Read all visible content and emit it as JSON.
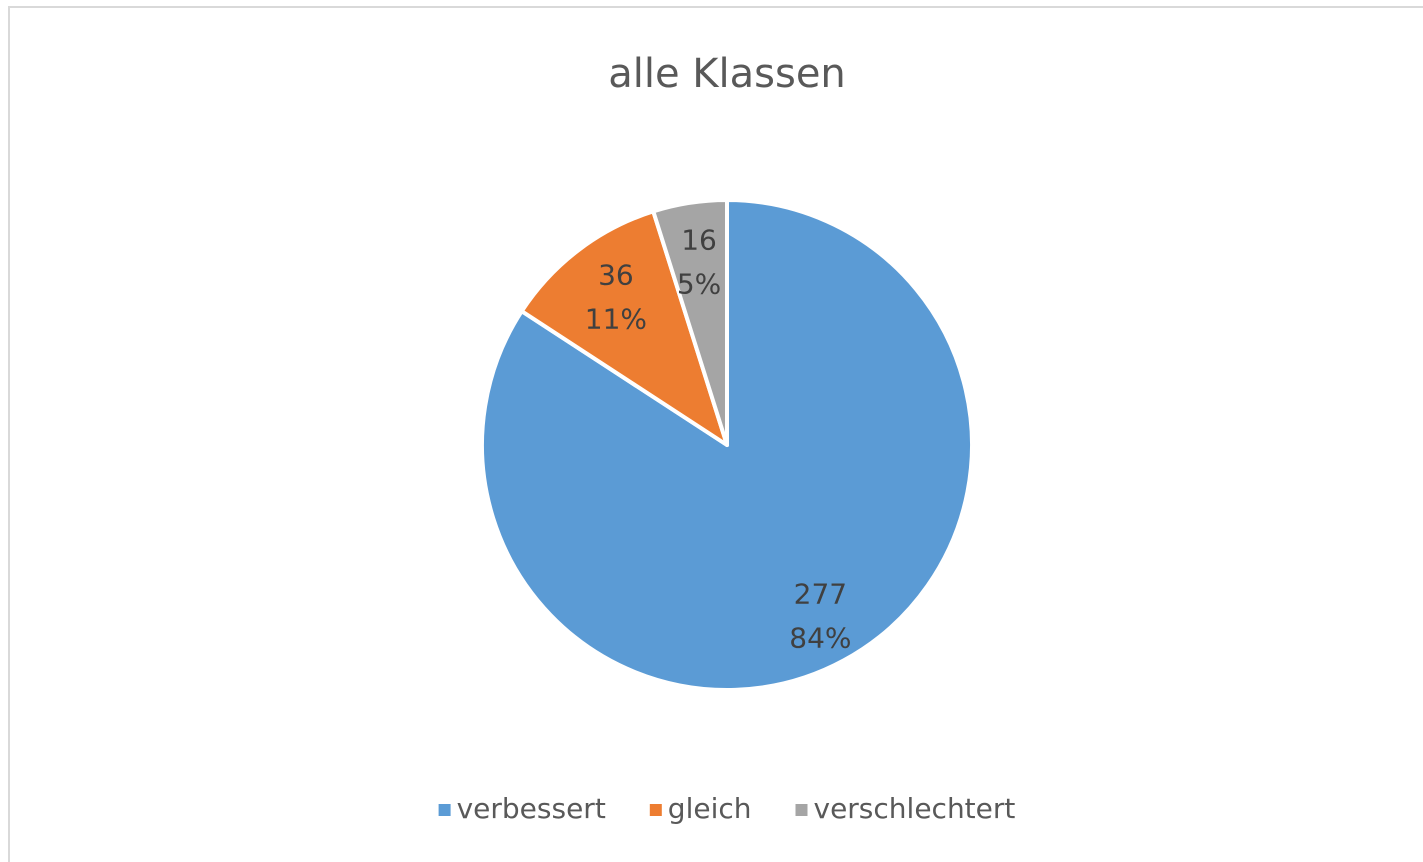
{
  "chart_data": {
    "type": "pie",
    "title": "alle Klassen",
    "categories": [
      "verbessert",
      "gleich",
      "verschlechtert"
    ],
    "values": [
      277,
      36,
      16
    ],
    "percentages": [
      84,
      11,
      5
    ],
    "percentage_labels": [
      "84%",
      "11%",
      "5%"
    ],
    "colors": [
      "#5b9bd5",
      "#ed7d31",
      "#a5a5a5"
    ],
    "legend": "bottom"
  }
}
